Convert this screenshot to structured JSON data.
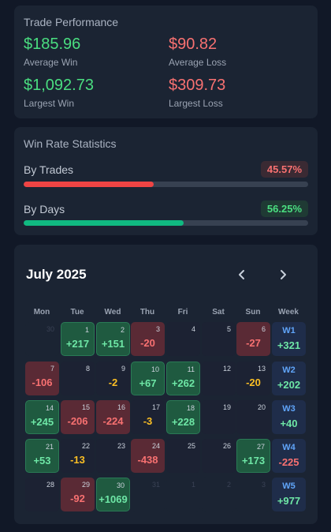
{
  "performance": {
    "title": "Trade Performance",
    "avg_win": {
      "value": "$185.96",
      "label": "Average Win"
    },
    "avg_loss": {
      "value": "$90.82",
      "label": "Average Loss"
    },
    "largest_win": {
      "value": "$1,092.73",
      "label": "Largest Win"
    },
    "largest_loss": {
      "value": "$309.73",
      "label": "Largest Loss"
    }
  },
  "win_rate": {
    "title": "Win Rate Statistics",
    "trades": {
      "label": "By Trades",
      "value": "45.57%",
      "fraction": 0.4557
    },
    "days": {
      "label": "By Days",
      "value": "56.25%",
      "fraction": 0.5625
    }
  },
  "calendar": {
    "month": "July 2025",
    "prev_icon": "chevron-left-icon",
    "next_icon": "chevron-right-icon",
    "weekdays": [
      "Mon",
      "Tue",
      "Wed",
      "Thu",
      "Fri",
      "Sat",
      "Sun",
      "Week"
    ],
    "days": [
      {
        "d": "30",
        "pnl": "",
        "state": "outside"
      },
      {
        "d": "1",
        "pnl": "+217",
        "state": "win"
      },
      {
        "d": "2",
        "pnl": "+151",
        "state": "win"
      },
      {
        "d": "3",
        "pnl": "-20",
        "state": "loss"
      },
      {
        "d": "4",
        "pnl": "",
        "state": "flat"
      },
      {
        "d": "5",
        "pnl": "",
        "state": "flat"
      },
      {
        "d": "6",
        "pnl": "-27",
        "state": "loss"
      },
      {
        "d": "7",
        "pnl": "-106",
        "state": "loss"
      },
      {
        "d": "8",
        "pnl": "",
        "state": "flat"
      },
      {
        "d": "9",
        "pnl": "-2",
        "state": "flat-neg"
      },
      {
        "d": "10",
        "pnl": "+67",
        "state": "win"
      },
      {
        "d": "11",
        "pnl": "+262",
        "state": "win"
      },
      {
        "d": "12",
        "pnl": "",
        "state": "flat"
      },
      {
        "d": "13",
        "pnl": "-20",
        "state": "flat-neg"
      },
      {
        "d": "14",
        "pnl": "+245",
        "state": "win"
      },
      {
        "d": "15",
        "pnl": "-206",
        "state": "loss"
      },
      {
        "d": "16",
        "pnl": "-224",
        "state": "loss"
      },
      {
        "d": "17",
        "pnl": "-3",
        "state": "flat-neg"
      },
      {
        "d": "18",
        "pnl": "+228",
        "state": "win"
      },
      {
        "d": "19",
        "pnl": "",
        "state": "flat"
      },
      {
        "d": "20",
        "pnl": "",
        "state": "flat"
      },
      {
        "d": "21",
        "pnl": "+53",
        "state": "win"
      },
      {
        "d": "22",
        "pnl": "-13",
        "state": "flat-neg"
      },
      {
        "d": "23",
        "pnl": "",
        "state": "flat"
      },
      {
        "d": "24",
        "pnl": "-438",
        "state": "loss"
      },
      {
        "d": "25",
        "pnl": "",
        "state": "flat"
      },
      {
        "d": "26",
        "pnl": "",
        "state": "flat"
      },
      {
        "d": "27",
        "pnl": "+173",
        "state": "win"
      },
      {
        "d": "28",
        "pnl": "",
        "state": "flat"
      },
      {
        "d": "29",
        "pnl": "-92",
        "state": "loss"
      },
      {
        "d": "30",
        "pnl": "+1069",
        "state": "win"
      },
      {
        "d": "31",
        "pnl": "",
        "state": "outside"
      },
      {
        "d": "1",
        "pnl": "",
        "state": "outside"
      },
      {
        "d": "2",
        "pnl": "",
        "state": "outside"
      },
      {
        "d": "3",
        "pnl": "",
        "state": "outside"
      }
    ],
    "weeks": [
      {
        "label": "W1",
        "pnl": "+321"
      },
      {
        "label": "W2",
        "pnl": "+202"
      },
      {
        "label": "W3",
        "pnl": "+40"
      },
      {
        "label": "W4",
        "pnl": "-225"
      },
      {
        "label": "W5",
        "pnl": "+977"
      }
    ]
  }
}
